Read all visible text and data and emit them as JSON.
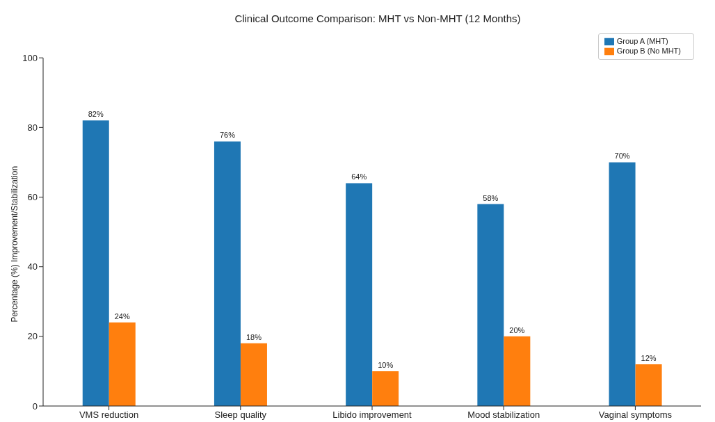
{
  "chart_data": {
    "type": "bar",
    "title": "Clinical Outcome Comparison: MHT vs Non-MHT (12 Months)",
    "ylabel": "Percentage (%) Improvement/Stabilization",
    "categories": [
      "VMS reduction",
      "Sleep quality",
      "Libido improvement",
      "Mood stabilization",
      "Vaginal symptoms"
    ],
    "series": [
      {
        "name": "Group A (MHT)",
        "color": "#1f77b4",
        "values": [
          82,
          76,
          64,
          58,
          70
        ],
        "value_labels": [
          "82%",
          "76%",
          "64%",
          "58%",
          "70%"
        ]
      },
      {
        "name": "Group B (No MHT)",
        "color": "#ff7f0e",
        "values": [
          24,
          18,
          10,
          20,
          12
        ],
        "value_labels": [
          "24%",
          "18%",
          "10%",
          "20%",
          "12%"
        ]
      }
    ],
    "ylim": [
      0,
      100
    ],
    "yticks": [
      0,
      20,
      40,
      60,
      80,
      100
    ],
    "legend": "top right"
  }
}
